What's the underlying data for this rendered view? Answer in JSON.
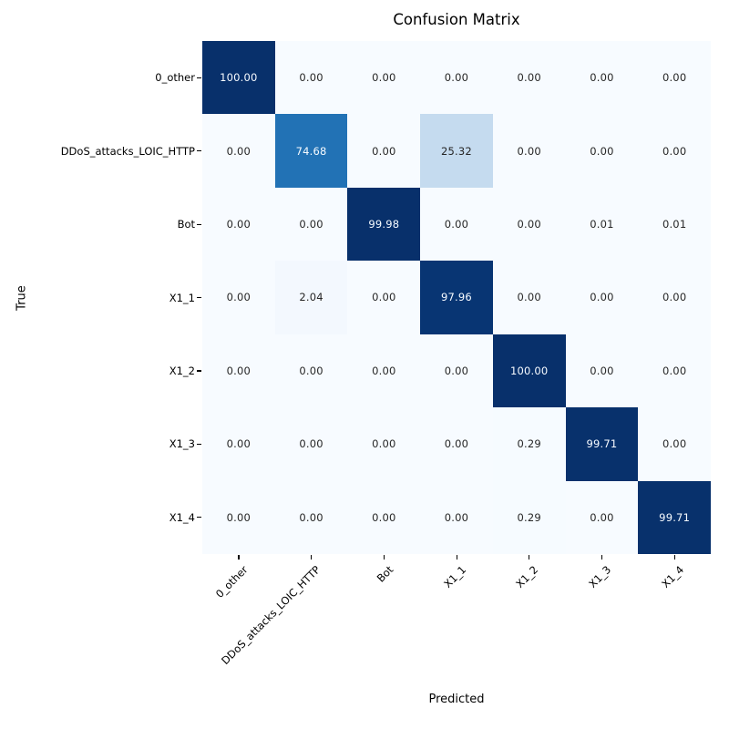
{
  "chart_data": {
    "type": "heatmap",
    "title": "Confusion Matrix",
    "xlabel": "Predicted",
    "ylabel": "True",
    "categories": [
      "0_other",
      "DDoS_attacks_LOIC_HTTP",
      "Bot",
      "X1_1",
      "X1_2",
      "X1_3",
      "X1_4"
    ],
    "matrix": [
      [
        100.0,
        0.0,
        0.0,
        0.0,
        0.0,
        0.0,
        0.0
      ],
      [
        0.0,
        74.68,
        0.0,
        25.32,
        0.0,
        0.0,
        0.0
      ],
      [
        0.0,
        0.0,
        99.98,
        0.0,
        0.0,
        0.01,
        0.01
      ],
      [
        0.0,
        2.04,
        0.0,
        97.96,
        0.0,
        0.0,
        0.0
      ],
      [
        0.0,
        0.0,
        0.0,
        0.0,
        100.0,
        0.0,
        0.0
      ],
      [
        0.0,
        0.0,
        0.0,
        0.0,
        0.29,
        99.71,
        0.0
      ],
      [
        0.0,
        0.0,
        0.0,
        0.0,
        0.29,
        0.0,
        99.71
      ]
    ],
    "vmin": 0,
    "vmax": 100,
    "value_decimals": 2,
    "colormap": {
      "name": "Blues",
      "stops": [
        "#f7fbff",
        "#deebf7",
        "#c6dbef",
        "#9ecae1",
        "#6baed6",
        "#4292c6",
        "#2171b5",
        "#08519c",
        "#08306b"
      ]
    },
    "text_colors": {
      "on_light_cell": "#262626",
      "on_dark_cell": "#f7fbff",
      "threshold": 50
    },
    "grid": false,
    "legend": "none",
    "background": "#ffffff"
  }
}
